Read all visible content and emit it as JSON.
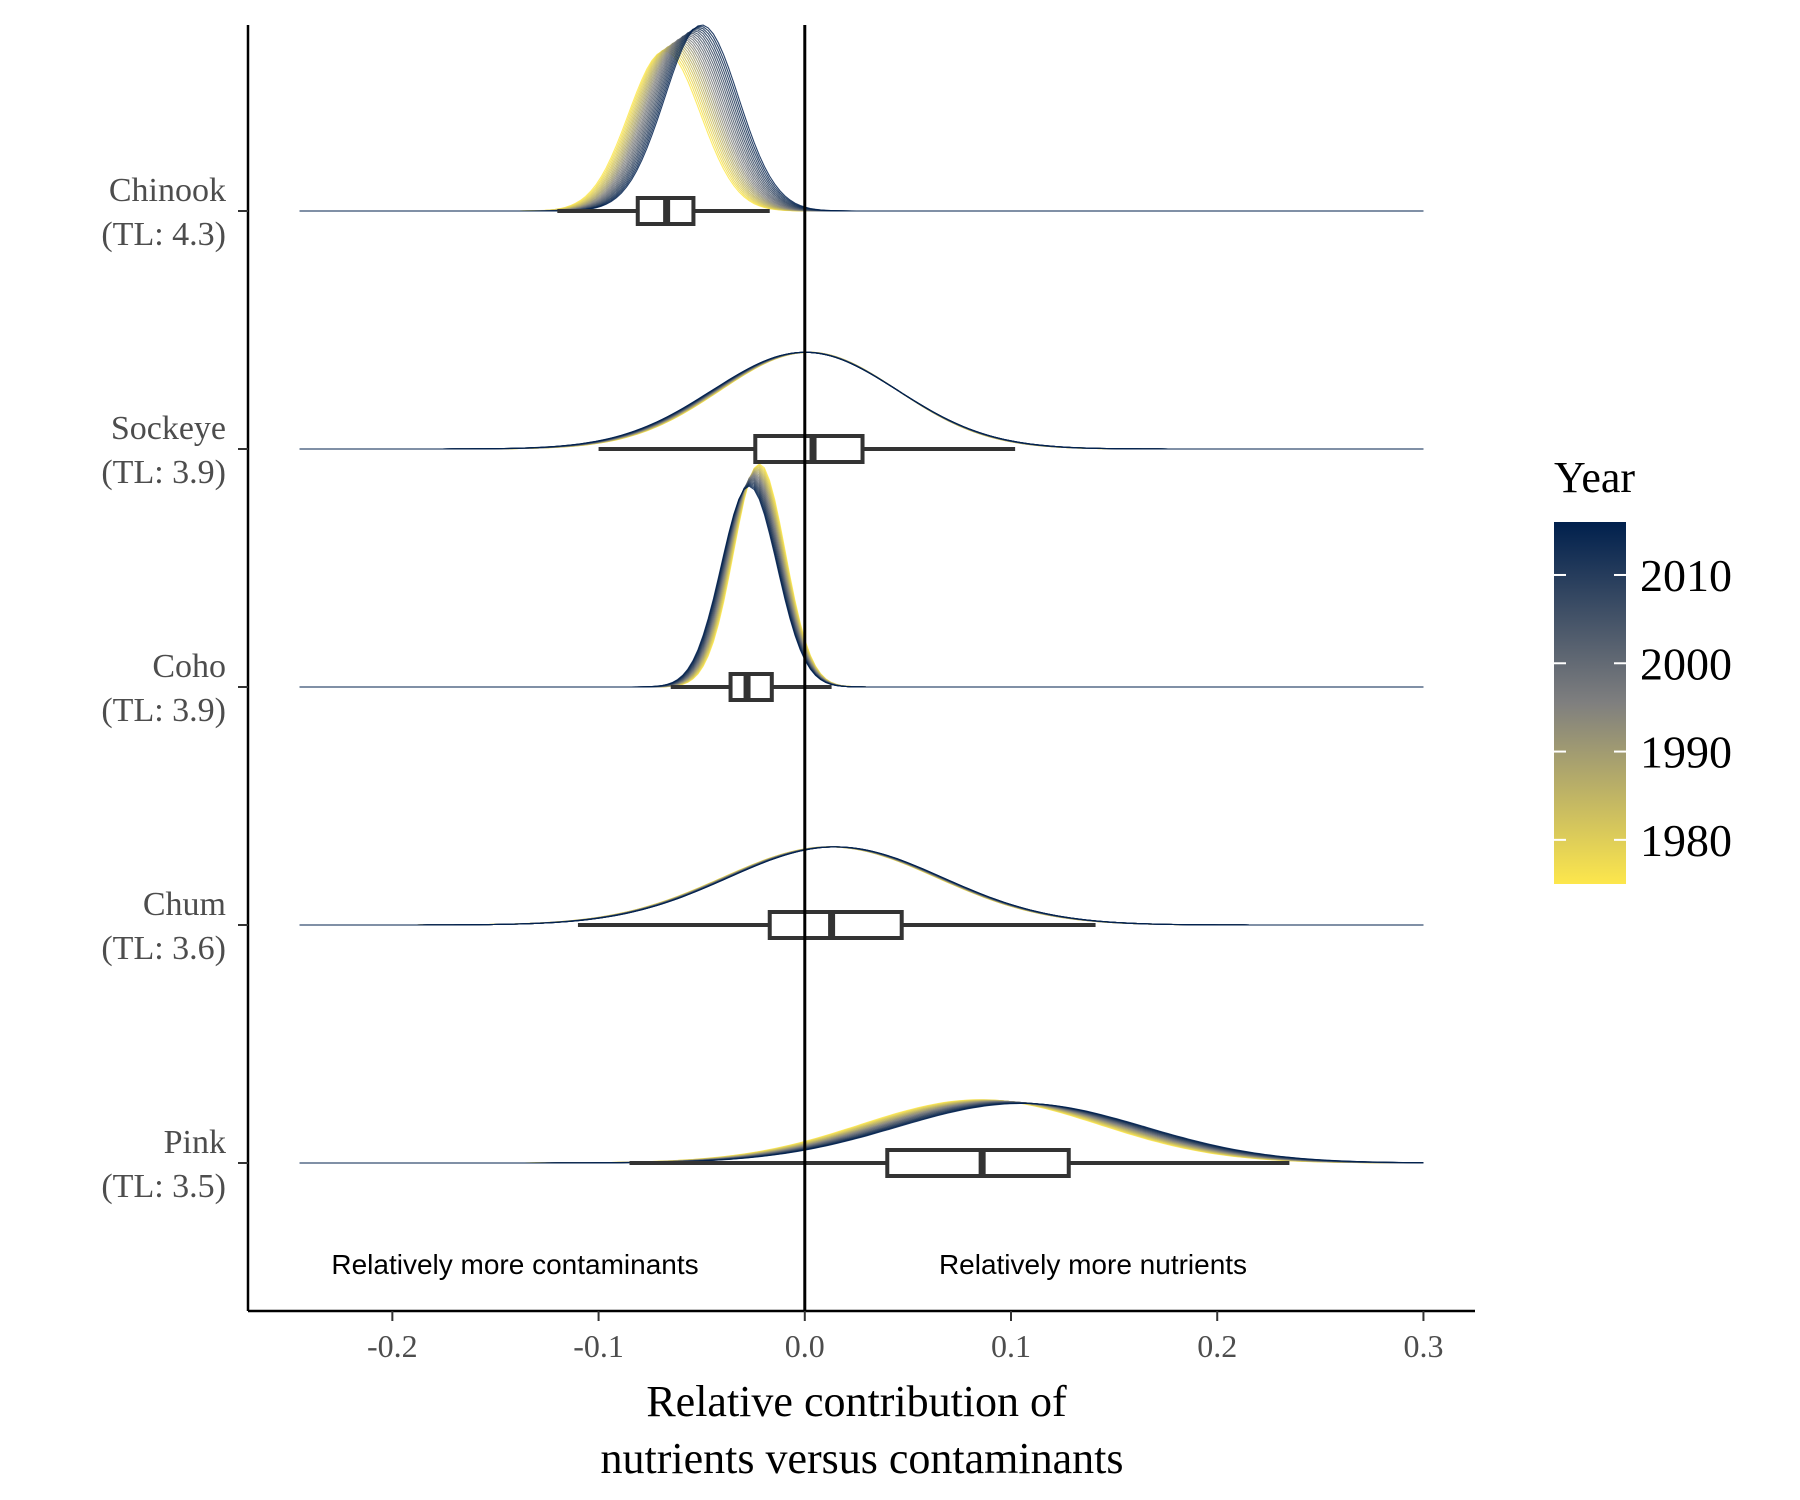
{
  "chart_data": {
    "type": "ridgeline",
    "xlabel": [
      "Relative contribution of",
      "nutrients versus contaminants"
    ],
    "xlim": [
      -0.27,
      0.325
    ],
    "xticks": [
      -0.2,
      -0.1,
      0.0,
      0.1,
      0.2,
      0.3
    ],
    "xtick_labels": [
      "-0.2",
      "-0.1",
      "0.0",
      "0.1",
      "0.2",
      "0.3"
    ],
    "vline_x": 0.0,
    "annotations": {
      "left": "Relatively more contaminants",
      "right": "Relatively more nutrients"
    },
    "legend": {
      "title": "Year",
      "position": "right",
      "range": [
        1975,
        2016
      ],
      "ticks": [
        2010,
        2000,
        1990,
        1980
      ],
      "colors": {
        "start": "#fde74c",
        "mid": "#7f7f7f",
        "end": "#00204d"
      }
    },
    "species": [
      {
        "name": "Chinook",
        "tl": "(TL: 4.3)",
        "early": {
          "mu": -0.068,
          "sd": 0.0175,
          "h": 0.86
        },
        "late": {
          "mu": -0.05,
          "sd": 0.018,
          "h": 1.0
        },
        "box": {
          "wmin": -0.12,
          "q1": -0.081,
          "median": -0.067,
          "q3": -0.054,
          "wmax": -0.017
        }
      },
      {
        "name": "Sockeye",
        "tl": "(TL: 3.9)",
        "early": {
          "mu": 0.002,
          "sd": 0.043,
          "h": 0.52
        },
        "late": {
          "mu": 0.0,
          "sd": 0.045,
          "h": 0.52
        },
        "box": {
          "wmin": -0.1,
          "q1": -0.024,
          "median": 0.004,
          "q3": 0.028,
          "wmax": 0.102
        }
      },
      {
        "name": "Coho",
        "tl": "(TL: 3.9)",
        "early": {
          "mu": -0.022,
          "sd": 0.0125,
          "h": 1.2
        },
        "late": {
          "mu": -0.027,
          "sd": 0.0135,
          "h": 1.08
        },
        "box": {
          "wmin": -0.065,
          "q1": -0.036,
          "median": -0.028,
          "q3": -0.016,
          "wmax": 0.013
        }
      },
      {
        "name": "Chum",
        "tl": "(TL: 3.6)",
        "early": {
          "mu": 0.012,
          "sd": 0.052,
          "h": 0.42
        },
        "late": {
          "mu": 0.015,
          "sd": 0.052,
          "h": 0.42
        },
        "box": {
          "wmin": -0.11,
          "q1": -0.017,
          "median": 0.013,
          "q3": 0.047,
          "wmax": 0.141
        }
      },
      {
        "name": "Pink",
        "tl": "(TL: 3.5)",
        "early": {
          "mu": 0.085,
          "sd": 0.058,
          "h": 0.34
        },
        "late": {
          "mu": 0.105,
          "sd": 0.06,
          "h": 0.32
        },
        "box": {
          "wmin": -0.085,
          "q1": 0.04,
          "median": 0.086,
          "q3": 0.128,
          "wmax": 0.235
        }
      }
    ]
  }
}
